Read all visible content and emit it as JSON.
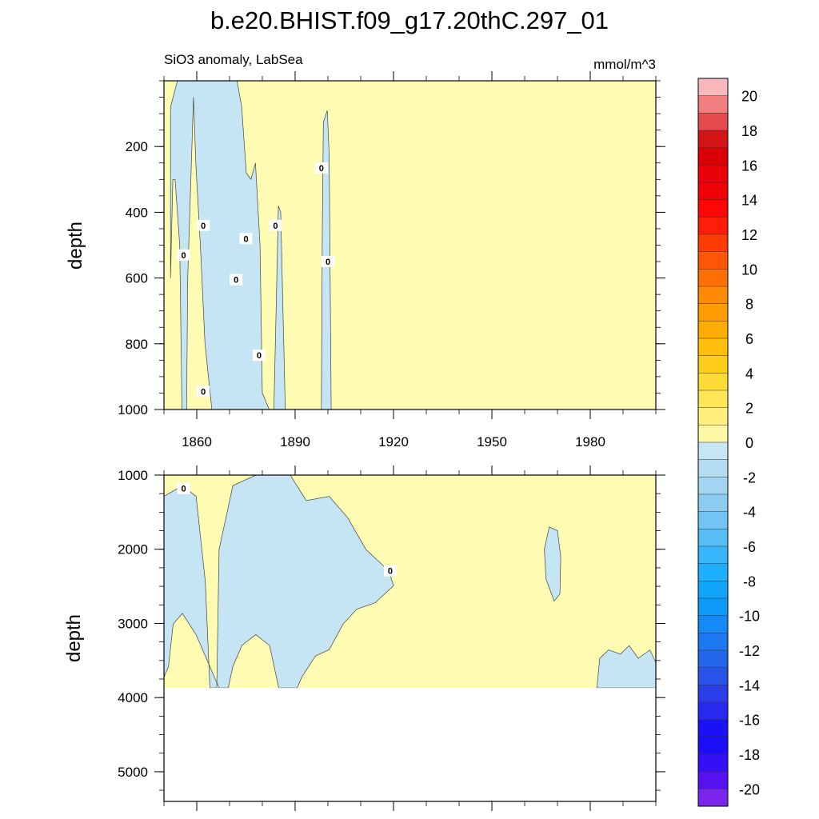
{
  "chart_data": {
    "type": "heatmap",
    "title": "b.e20.BHIST.f09_g17.20thC.297_01",
    "subtitle_left": "SiO3 anomaly, LabSea",
    "subtitle_right": "mmol/m^3",
    "contour_label": "0",
    "panels": [
      {
        "name": "upper",
        "ylabel": "depth",
        "ylim": [
          1000,
          0
        ],
        "xlim": [
          1850,
          2000
        ],
        "yticks": [
          "200",
          "400",
          "600",
          "800",
          "1000"
        ],
        "xticks": [
          "1860",
          "1890",
          "1920",
          "1950",
          "1980"
        ],
        "regions": [
          {
            "sign": "negative",
            "start_year": 1852,
            "end_year": 1887,
            "depth_top": 0,
            "depth_bottom": 1000
          },
          {
            "sign": "negative",
            "start_year": 1898,
            "end_year": 1901,
            "depth_top": 90,
            "depth_bottom": 1000
          }
        ],
        "zero_contour_labels": [
          {
            "year": 1856,
            "depth": 530
          },
          {
            "year": 1862,
            "depth": 440
          },
          {
            "year": 1862,
            "depth": 945
          },
          {
            "year": 1872,
            "depth": 605
          },
          {
            "year": 1875,
            "depth": 480
          },
          {
            "year": 1879,
            "depth": 835
          },
          {
            "year": 1884,
            "depth": 440
          },
          {
            "year": 1898,
            "depth": 265
          },
          {
            "year": 1900,
            "depth": 550
          }
        ]
      },
      {
        "name": "lower",
        "ylabel": "depth",
        "ylim": [
          5400,
          1000
        ],
        "xlim": [
          1850,
          2000
        ],
        "yticks": [
          "1000",
          "2000",
          "3000",
          "4000",
          "5000"
        ],
        "data_bottom_depth": 3870,
        "regions": [
          {
            "sign": "negative",
            "start_year": 1850,
            "end_year": 1920,
            "depth_top": 1000,
            "depth_bottom": 3870
          },
          {
            "sign": "negative",
            "start_year": 1966,
            "end_year": 1971,
            "depth_top": 1700,
            "depth_bottom": 2700
          },
          {
            "sign": "negative",
            "start_year": 1982,
            "end_year": 2000,
            "depth_top": 3300,
            "depth_bottom": 3870
          }
        ],
        "zero_contour_labels": [
          {
            "year": 1856,
            "depth": 1180
          },
          {
            "year": 1919,
            "depth": 2290
          }
        ]
      }
    ],
    "colorbar": {
      "levels": [
        "20",
        "18",
        "16",
        "14",
        "12",
        "10",
        "8",
        "6",
        "4",
        "2",
        "0",
        "-2",
        "-4",
        "-6",
        "-8",
        "-10",
        "-12",
        "-14",
        "-16",
        "-18",
        "-20"
      ],
      "colors": [
        "#f9b8bc",
        "#f17f80",
        "#e54a4c",
        "#d31517",
        "#db0008",
        "#e9000a",
        "#f10008",
        "#fe0506",
        "#ff1d09",
        "#ff3b04",
        "#ff5507",
        "#ff6f03",
        "#ff8904",
        "#ff9c02",
        "#ffad05",
        "#ffbe0c",
        "#ffcd1c",
        "#ffdb36",
        "#ffe657",
        "#fff07d",
        "#fef8a5",
        "#c6e5f5",
        "#b4ddf2",
        "#a2d5f1",
        "#8cccf0",
        "#72c5f3",
        "#56bdf5",
        "#38b6fc",
        "#1eb0fe",
        "#10a6fc",
        "#0f99f9",
        "#158af6",
        "#1c78f0",
        "#2266ec",
        "#2852e8",
        "#2b3de8",
        "#2729ee",
        "#1a12f4",
        "#1e0ef7",
        "#350ff6",
        "#5611f1",
        "#7a25ee"
      ]
    },
    "colors": {
      "positive_fill": "#fefbb3",
      "negative_fill": "#c5e5f5",
      "line": "#444444",
      "frame": "#000000"
    }
  }
}
